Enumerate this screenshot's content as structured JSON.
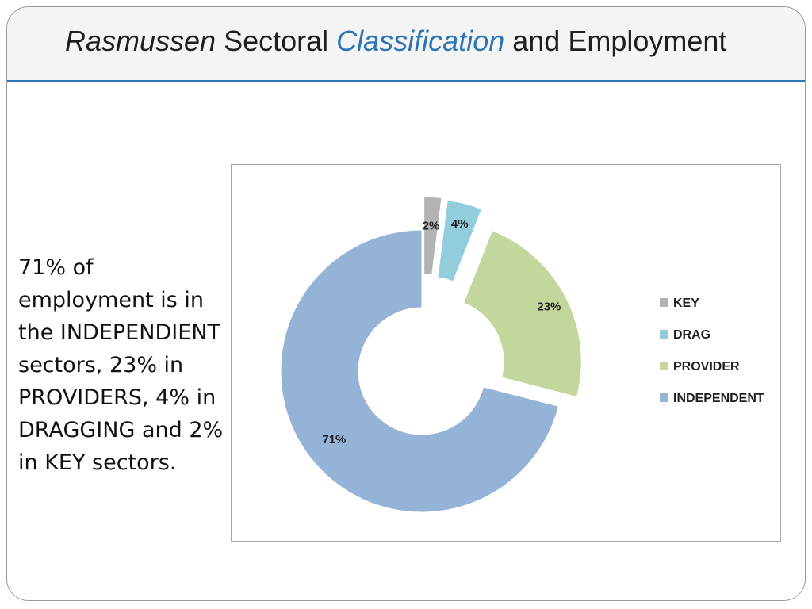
{
  "title": {
    "part1": "Rasmussen",
    "part2": " Sectoral ",
    "part3": "Classification",
    "part4": " and Employment"
  },
  "body_text": "71% of employment is in the INDEPENDIENT sectors, 23% in PROVIDERS, 4% in DRAGGING and 2% in KEY sectors.",
  "chart_data": {
    "type": "pie",
    "style": "exploded-doughnut",
    "categories": [
      "KEY",
      "DRAG",
      "PROVIDER",
      "INDEPENDENT"
    ],
    "values": [
      2,
      4,
      23,
      71
    ],
    "labels": [
      "2%",
      "4%",
      "23%",
      "71%"
    ],
    "colors": [
      "#b3b3b3",
      "#92cddc",
      "#c3d69b",
      "#95b3d7"
    ],
    "legend_position": "right"
  }
}
